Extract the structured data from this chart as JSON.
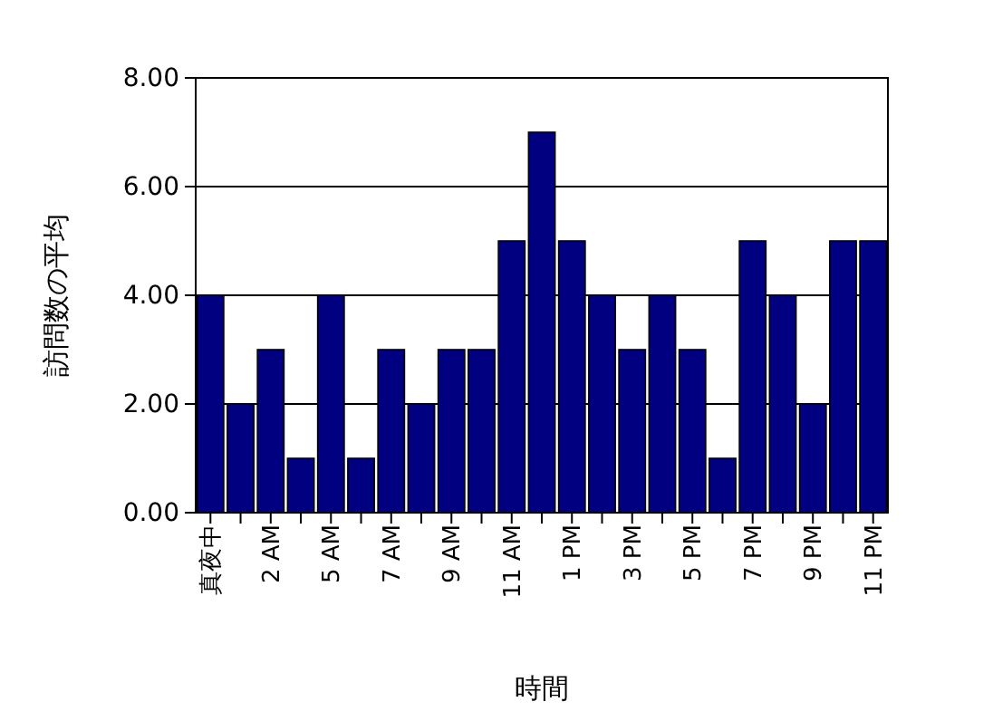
{
  "chart_data": {
    "type": "bar",
    "xlabel": "時間",
    "ylabel": "訪問数の平均",
    "categories": [
      "真夜中",
      null,
      "2 AM",
      null,
      "5 AM",
      null,
      "7 AM",
      null,
      "9 AM",
      null,
      "11 AM",
      null,
      "1 PM",
      null,
      "3 PM",
      null,
      "5 PM",
      null,
      "7 PM",
      null,
      "9 PM",
      null,
      "11 PM"
    ],
    "values": [
      4,
      2,
      3,
      1,
      4,
      1,
      3,
      2,
      3,
      3,
      5,
      7,
      5,
      4,
      3,
      4,
      3,
      1,
      5,
      4,
      2,
      5,
      5
    ],
    "color": "#000080",
    "ylim": [
      0,
      8
    ],
    "yticks": [
      {
        "value": 0,
        "label": "0.00"
      },
      {
        "value": 2,
        "label": "2.00"
      },
      {
        "value": 4,
        "label": "4.00"
      },
      {
        "value": 6,
        "label": "6.00"
      },
      {
        "value": 8,
        "label": "8.00"
      }
    ],
    "grid": "y"
  }
}
